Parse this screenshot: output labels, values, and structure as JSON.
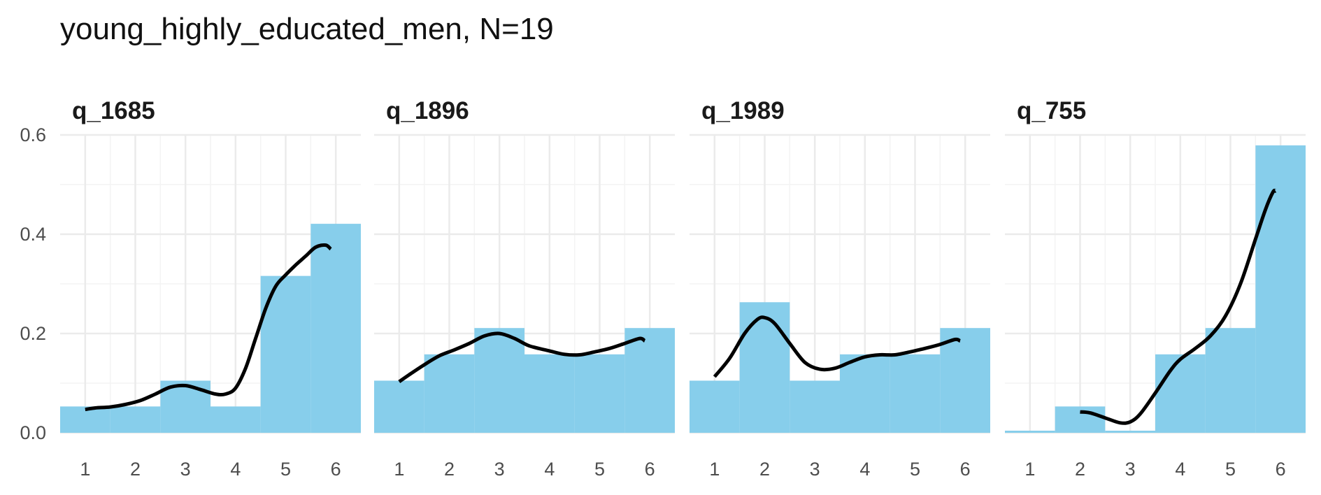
{
  "chart_data": {
    "type": "bar",
    "title": "young_highly_educated_men, N=19",
    "xlabel": "",
    "ylabel": "",
    "ylim": [
      0,
      0.6
    ],
    "xlim": [
      0.5,
      6.5
    ],
    "y_ticks": [
      "0.0",
      "0.2",
      "0.4",
      "0.6"
    ],
    "x_ticks": [
      "1",
      "2",
      "3",
      "4",
      "5",
      "6"
    ],
    "grid": true,
    "bar_color": "#87ceeb",
    "line_color": "#000000",
    "facets": [
      {
        "label": "q_1685",
        "categories": [
          1,
          2,
          3,
          4,
          5,
          6
        ],
        "values": [
          0.053,
          0.053,
          0.105,
          0.053,
          0.316,
          0.421
        ],
        "density": {
          "x": [
            1.0,
            1.2,
            1.5,
            1.8,
            2.1,
            2.4,
            2.7,
            3.0,
            3.3,
            3.6,
            3.8,
            4.0,
            4.2,
            4.4,
            4.6,
            4.8,
            5.0,
            5.2,
            5.4,
            5.6,
            5.8,
            5.9
          ],
          "y": [
            0.047,
            0.05,
            0.052,
            0.057,
            0.065,
            0.078,
            0.092,
            0.095,
            0.087,
            0.078,
            0.078,
            0.09,
            0.13,
            0.19,
            0.25,
            0.295,
            0.318,
            0.338,
            0.356,
            0.374,
            0.378,
            0.37
          ]
        }
      },
      {
        "label": "q_1896",
        "categories": [
          1,
          2,
          3,
          4,
          5,
          6
        ],
        "values": [
          0.105,
          0.158,
          0.211,
          0.158,
          0.158,
          0.211
        ],
        "density": {
          "x": [
            1.0,
            1.2,
            1.5,
            1.8,
            2.1,
            2.4,
            2.7,
            3.0,
            3.3,
            3.6,
            4.0,
            4.3,
            4.6,
            4.9,
            5.2,
            5.5,
            5.8,
            5.9
          ],
          "y": [
            0.103,
            0.117,
            0.137,
            0.155,
            0.167,
            0.18,
            0.195,
            0.2,
            0.19,
            0.175,
            0.165,
            0.158,
            0.157,
            0.163,
            0.17,
            0.18,
            0.19,
            0.185
          ]
        }
      },
      {
        "label": "q_1989",
        "categories": [
          1,
          2,
          3,
          4,
          5,
          6
        ],
        "values": [
          0.105,
          0.263,
          0.105,
          0.158,
          0.158,
          0.211
        ],
        "density": {
          "x": [
            1.0,
            1.3,
            1.6,
            1.85,
            2.0,
            2.2,
            2.5,
            2.8,
            3.1,
            3.4,
            3.7,
            4.0,
            4.3,
            4.6,
            4.9,
            5.2,
            5.5,
            5.8,
            5.9
          ],
          "y": [
            0.113,
            0.15,
            0.2,
            0.228,
            0.232,
            0.22,
            0.18,
            0.142,
            0.128,
            0.13,
            0.142,
            0.153,
            0.157,
            0.157,
            0.163,
            0.17,
            0.178,
            0.188,
            0.185
          ]
        }
      },
      {
        "label": "q_755",
        "categories": [
          1,
          2,
          3,
          4,
          5,
          6
        ],
        "values": [
          0.0,
          0.053,
          0.0,
          0.158,
          0.211,
          0.579
        ],
        "density": {
          "x": [
            2.0,
            2.2,
            2.5,
            2.8,
            3.0,
            3.2,
            3.5,
            3.8,
            4.0,
            4.3,
            4.6,
            4.9,
            5.2,
            5.5,
            5.7,
            5.85,
            5.9
          ],
          "y": [
            0.042,
            0.04,
            0.03,
            0.02,
            0.022,
            0.038,
            0.08,
            0.125,
            0.148,
            0.17,
            0.195,
            0.235,
            0.3,
            0.39,
            0.45,
            0.485,
            0.487
          ]
        }
      }
    ]
  }
}
